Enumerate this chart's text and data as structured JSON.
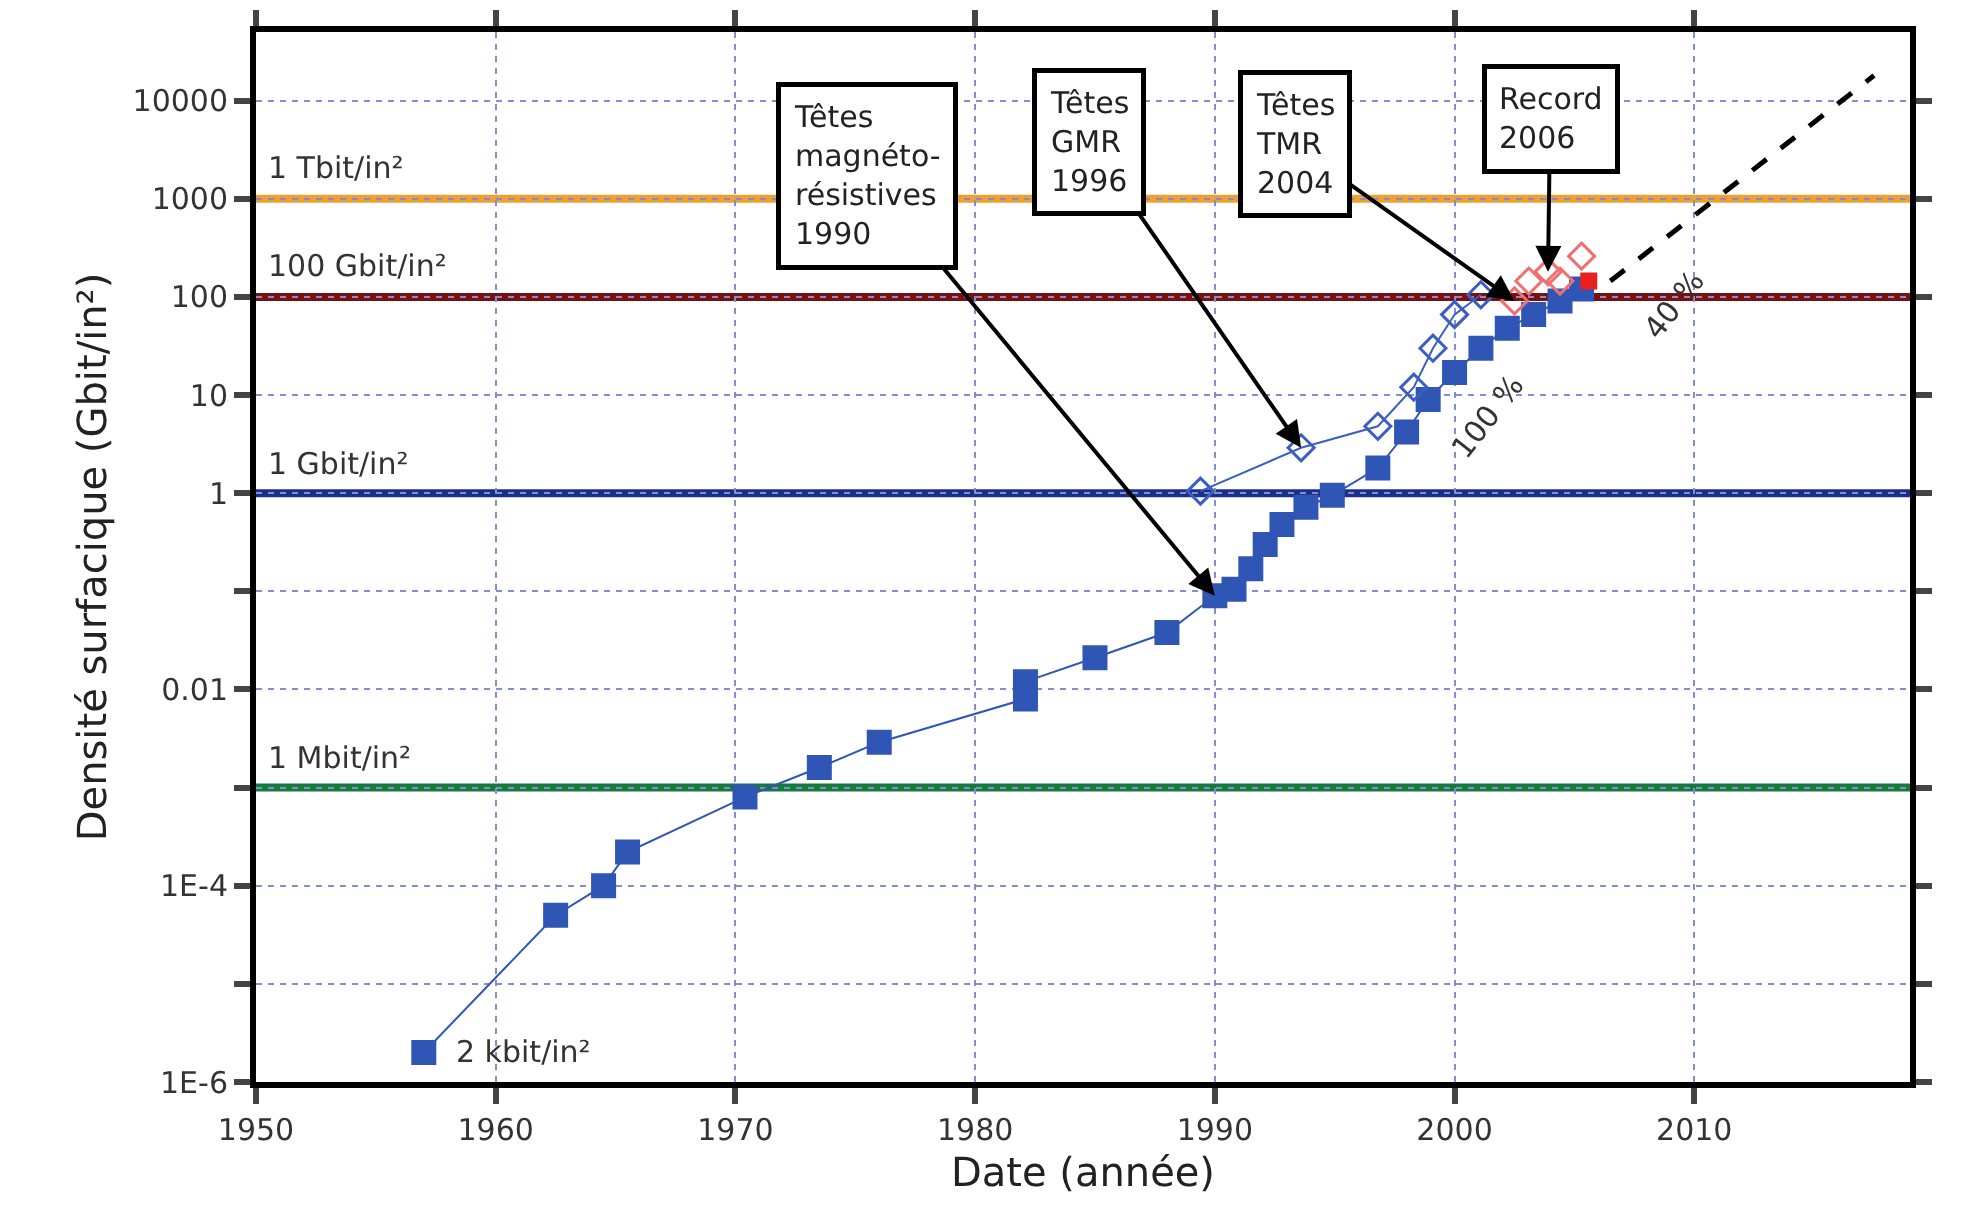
{
  "chart_data": {
    "type": "scatter",
    "xlabel": "Date (année)",
    "ylabel": "Densité surfacique (Gbit/in²)",
    "log": "y",
    "grid": true,
    "xlim": [
      1950,
      2019
    ],
    "xticks": [
      1950,
      1960,
      1970,
      1980,
      1990,
      2000,
      2010
    ],
    "ylim": [
      1e-06,
      50000
    ],
    "yticks": [
      {
        "value": 1e-06,
        "label": "1E-6"
      },
      {
        "value": 1e-05,
        "label": null
      },
      {
        "value": 0.0001,
        "label": "1E-4"
      },
      {
        "value": 0.001,
        "label": null
      },
      0.01,
      {
        "value": 0.1,
        "label": null
      },
      1,
      10,
      100,
      1000,
      10000
    ],
    "series": [
      {
        "type": "line",
        "marker": "square",
        "color": "#2f55b5",
        "x": [
          1957.0,
          1962.5,
          1964.5,
          1965.5,
          1970.4,
          1973.5,
          1976.0,
          1982.1,
          1982.1,
          1985.0,
          1988.0,
          1990.0,
          1990.8,
          1991.5,
          1992.1,
          1992.8,
          1993.8,
          1994.9,
          1996.8,
          1998.0,
          1998.9,
          2000.0,
          2001.1,
          2002.2,
          2003.3,
          2004.4,
          2005.3
        ],
        "values": [
          2e-06,
          5e-05,
          0.0001,
          0.00022,
          0.0008,
          0.0016,
          0.0029,
          0.008,
          0.012,
          0.021,
          0.038,
          0.09,
          0.105,
          0.17,
          0.3,
          0.48,
          0.72,
          0.95,
          1.8,
          4.2,
          9,
          17,
          30,
          48,
          66,
          91,
          120
        ]
      },
      {
        "type": "line",
        "marker": "diamond",
        "color": "#3a5fc0",
        "x": [
          1989.4,
          1993.6,
          1996.8,
          1998.3,
          1999.1,
          2000.0,
          2001.1
        ],
        "values": [
          1.05,
          2.9,
          4.8,
          12,
          30,
          66,
          105
        ]
      },
      {
        "marker": "diamond",
        "color": "#f07070",
        "x": [
          2002.5,
          2003.1,
          2003.9,
          2004.4,
          2005.3
        ],
        "values": [
          91,
          145,
          180,
          145,
          260
        ]
      },
      {
        "marker": "square",
        "color": "#e82020",
        "x": [
          2005.6
        ],
        "values": [
          145
        ]
      },
      {
        "type": "line",
        "marker": "none",
        "line_style": "dashed",
        "color": "#000000",
        "x": [
          2006.5,
          2017.5
        ],
        "values": [
          145,
          18000
        ]
      }
    ],
    "ref_lines": [
      {
        "axis": "y",
        "value": 1000,
        "label": "1 Tbit/in²",
        "color": "#f0a030"
      },
      {
        "axis": "y",
        "value": 100,
        "label": "100 Gbit/in²",
        "color": "#7a1010"
      },
      {
        "axis": "y",
        "value": 1,
        "label": "1 Gbit/in²",
        "color": "#1a2f8a"
      },
      {
        "axis": "y",
        "value": 0.001,
        "label": "1 Mbit/in²",
        "color": "#157a3a"
      }
    ],
    "annotations": [
      {
        "text": "Têtes\nmagnéto-\nrésistives\n1990",
        "x": 1990.0,
        "y": 0.09
      },
      {
        "text": "Têtes\nGMR\n1996",
        "x": 1993.6,
        "y": 2.9
      },
      {
        "text": "Têtes\nTMR\n2004",
        "x": 2002.5,
        "y": 91
      },
      {
        "text": "Record\n2006",
        "x": 2003.9,
        "y": 180
      },
      {
        "text": "2 kbit/in²",
        "x": 1957.0,
        "y": 2e-06
      },
      "100 %",
      "40 %"
    ]
  }
}
